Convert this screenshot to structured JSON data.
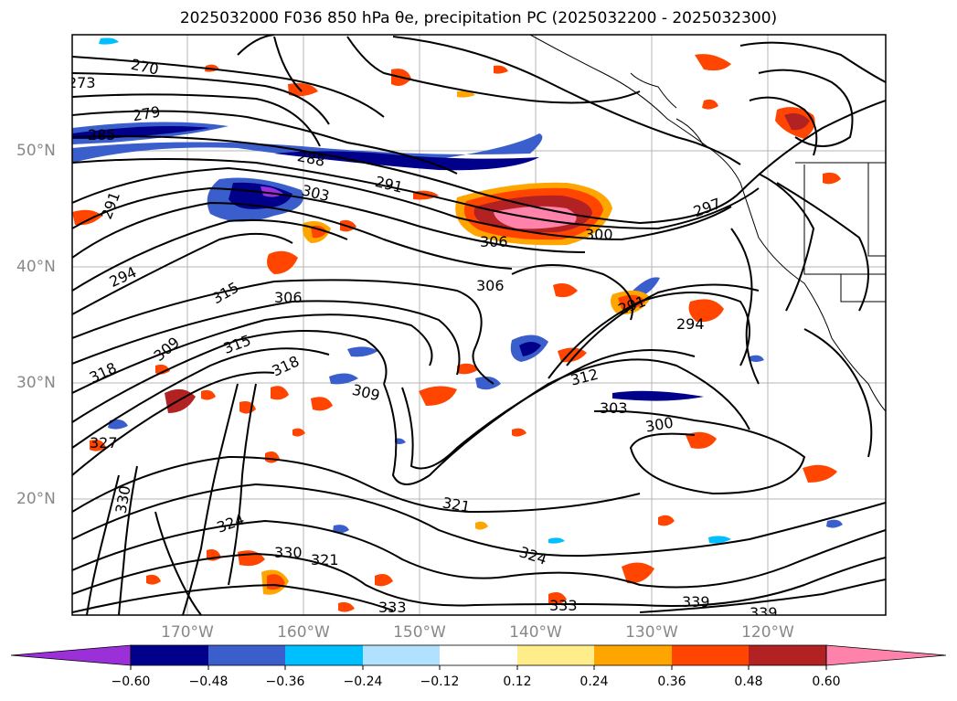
{
  "title": "2025032000 F036 850 hPa θe, precipitation PC (2025032200 - 2025032300)",
  "map": {
    "region": "North Pacific / western North America",
    "lat_labels": [
      "50°N",
      "40°N",
      "30°N",
      "20°N"
    ],
    "lon_labels": [
      "170°W",
      "160°W",
      "150°W",
      "140°W",
      "130°W",
      "120°W"
    ],
    "contour_field": "850 hPa θe",
    "contour_labels": [
      "270",
      "273",
      "279",
      "285",
      "288",
      "291",
      "291",
      "294",
      "297",
      "300",
      "303",
      "306",
      "306",
      "306",
      "309",
      "309",
      "312",
      "315",
      "318",
      "318",
      "321",
      "321",
      "324",
      "324",
      "327",
      "330",
      "330",
      "333",
      "333",
      "339",
      "339",
      "300",
      "303",
      "294",
      "291",
      "315"
    ],
    "shaded_field": "precipitation PC"
  },
  "colorbar": {
    "ticks": [
      "−0.60",
      "−0.48",
      "−0.36",
      "−0.24",
      "−0.12",
      "0.12",
      "0.24",
      "0.36",
      "0.48",
      "0.60"
    ],
    "colors": [
      "#9b30d9",
      "#00008b",
      "#3a5fcd",
      "#00bfff",
      "#b0e2ff",
      "#ffffff",
      "#ffec8b",
      "#ffa500",
      "#ff4500",
      "#b22222",
      "#ff82ab"
    ],
    "extend": "both"
  }
}
